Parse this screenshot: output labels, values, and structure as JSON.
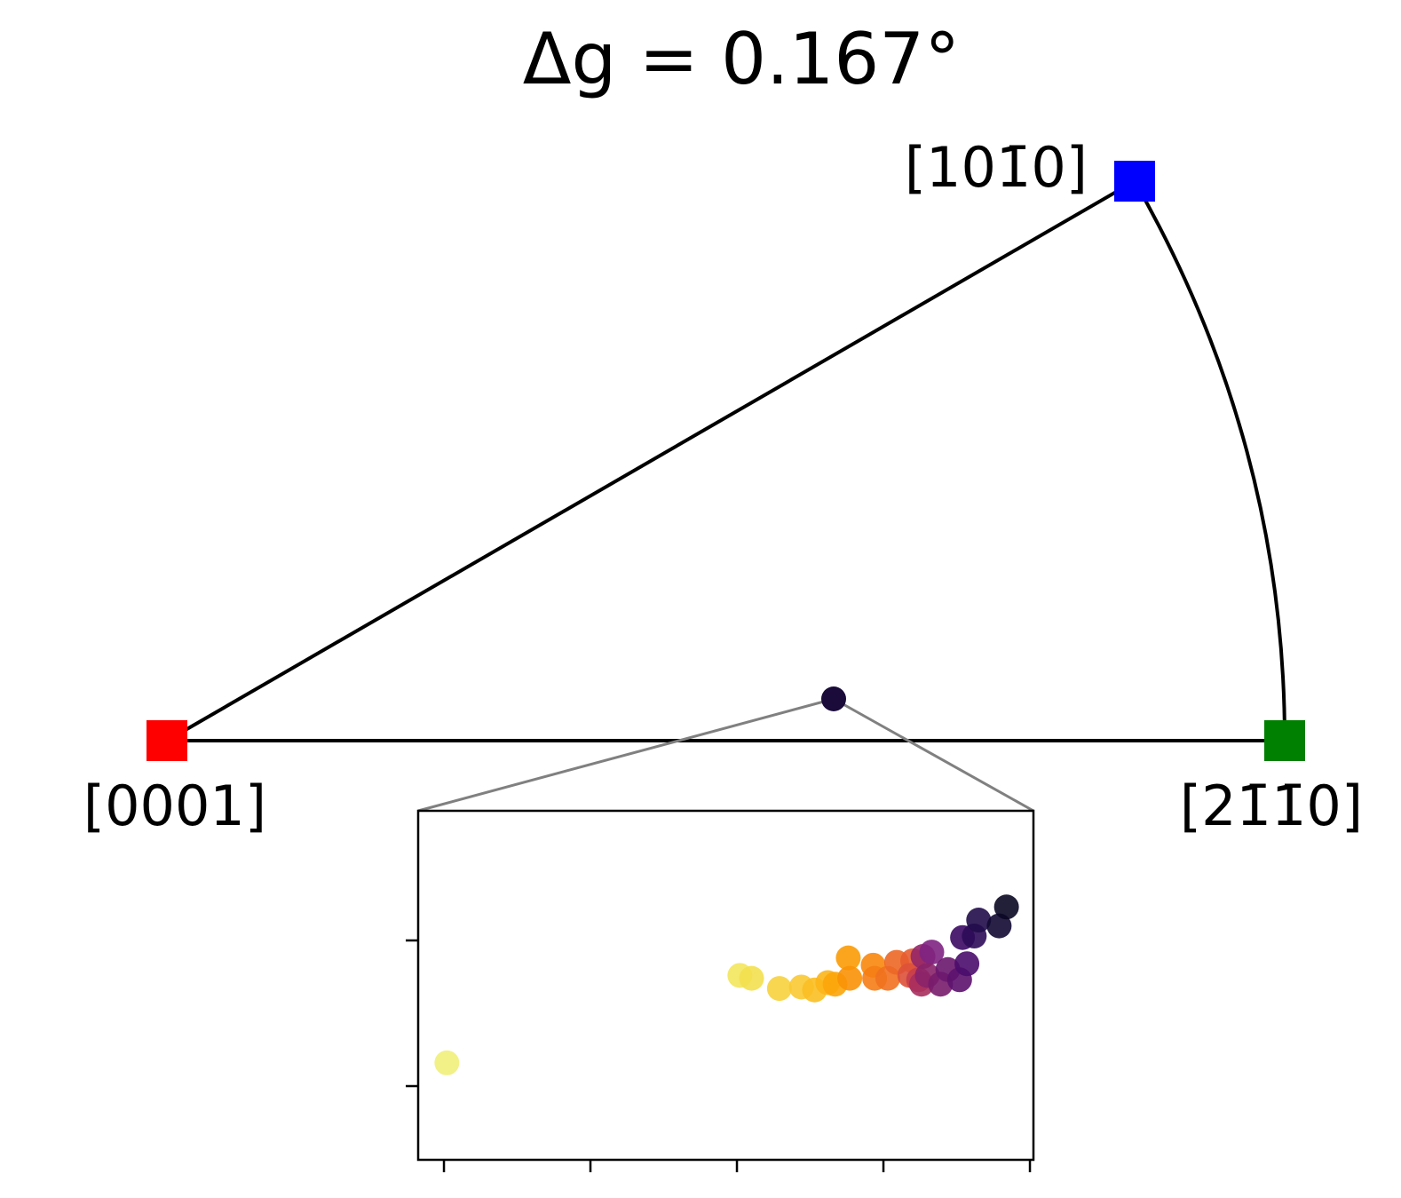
{
  "chart_data": {
    "type": "scatter",
    "title": "Δg = 0.167°",
    "poles": [
      {
        "label": "[0001]",
        "color": "#ff0000"
      },
      {
        "label": "[101̄0]",
        "color": "#0000ff"
      },
      {
        "label": "[21̄1̄0]",
        "color": "#008000"
      }
    ],
    "x": [
      0.02,
      2.02,
      2.1,
      2.29,
      2.44,
      2.53,
      2.62,
      2.67,
      2.76,
      2.77,
      2.93,
      2.94,
      3.03,
      3.09,
      3.2,
      3.18,
      3.24,
      3.26,
      3.27,
      3.33,
      3.3,
      3.39,
      3.44,
      3.52,
      3.57,
      3.54,
      3.62,
      3.65,
      3.79,
      3.84
    ],
    "values": [
      0.16,
      0.76,
      0.74,
      0.67,
      0.68,
      0.66,
      0.71,
      0.7,
      0.88,
      0.74,
      0.83,
      0.74,
      0.74,
      0.85,
      0.86,
      0.76,
      0.73,
      0.7,
      0.89,
      0.92,
      0.76,
      0.7,
      0.8,
      0.73,
      0.84,
      1.02,
      1.03,
      1.14,
      1.1,
      1.23
    ],
    "colors": [
      "#f0f07a",
      "#f3e55d",
      "#f3e04f",
      "#f7d13c",
      "#f9c933",
      "#fbbf24",
      "#fcb519",
      "#fca50a",
      "#fb9b06",
      "#fa9207",
      "#f8870e",
      "#f57d15",
      "#f1711f",
      "#ec6726",
      "#e55c30",
      "#dd513a",
      "#c73e4c",
      "#a92e5e",
      "#932667",
      "#7e2482",
      "#8a226a",
      "#781c6d",
      "#6a176e",
      "#5c126e",
      "#4a0c6b",
      "#3b0964",
      "#2d0b59",
      "#210c4a",
      "#120a32",
      "#0a0722"
    ],
    "xlim": [
      -0.176,
      4.024
    ],
    "ylim": [
      -0.506,
      1.89
    ],
    "xticks": [
      0,
      1,
      2,
      3,
      4
    ],
    "yticks": [
      0,
      1
    ]
  }
}
